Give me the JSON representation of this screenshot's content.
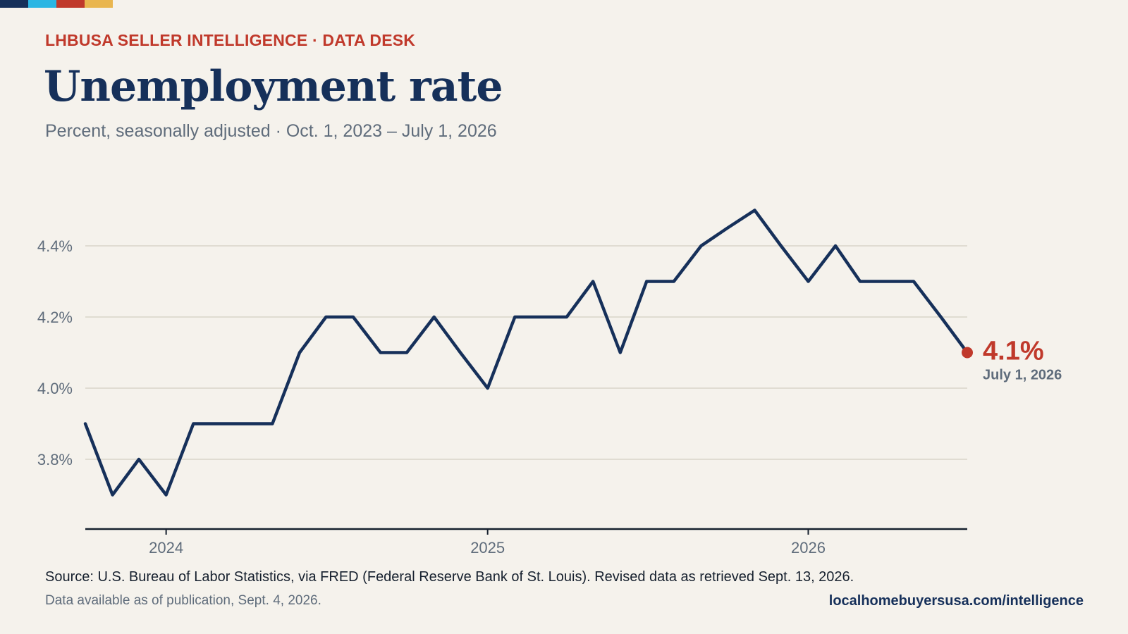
{
  "brand": {
    "stripe_colors": [
      "#16305a",
      "#2bb6e3",
      "#c0392b",
      "#e9b64f"
    ],
    "accent": "#c0392b",
    "line_color": "#16305a"
  },
  "header": {
    "kicker": "LHBUSA SELLER INTELLIGENCE · DATA DESK",
    "title": "Unemployment rate",
    "subtitle": "Percent, seasonally adjusted · Oct. 1, 2023 – July 1, 2026"
  },
  "chart_data": {
    "type": "line",
    "x": [
      "2023-10-01",
      "2023-11-01",
      "2023-12-01",
      "2024-01-01",
      "2024-02-01",
      "2024-03-01",
      "2024-04-01",
      "2024-05-01",
      "2024-06-01",
      "2024-07-01",
      "2024-08-01",
      "2024-09-01",
      "2024-10-01",
      "2024-11-01",
      "2024-12-01",
      "2025-01-01",
      "2025-02-01",
      "2025-03-01",
      "2025-04-01",
      "2025-05-01",
      "2025-06-01",
      "2025-07-01",
      "2025-08-01",
      "2025-09-01",
      "2025-10-01",
      "2025-11-01",
      "2025-12-01",
      "2026-01-01",
      "2026-02-01",
      "2026-03-01",
      "2026-04-01",
      "2026-05-01",
      "2026-06-01",
      "2026-07-01"
    ],
    "values": [
      3.9,
      3.7,
      3.8,
      3.7,
      3.9,
      3.9,
      3.9,
      3.9,
      4.1,
      4.2,
      4.2,
      4.1,
      4.1,
      4.2,
      4.1,
      4.0,
      4.2,
      4.2,
      4.2,
      4.3,
      4.1,
      4.3,
      4.3,
      4.4,
      4.45,
      4.5,
      4.4,
      4.3,
      4.4,
      4.3,
      4.3,
      4.3,
      4.2,
      4.1
    ],
    "ylim": [
      3.6,
      4.6
    ],
    "y_ticks": [
      3.8,
      4.0,
      4.2,
      4.4
    ],
    "y_tick_labels": [
      "3.8%",
      "4.0%",
      "4.2%",
      "4.4%"
    ],
    "x_ticks": [
      "2024-01-01",
      "2025-01-01",
      "2026-01-01"
    ],
    "x_tick_labels": [
      "2024",
      "2025",
      "2026"
    ],
    "grid": true,
    "end_label": {
      "value": "4.1%",
      "date": "July 1, 2026"
    }
  },
  "footer": {
    "source": "Source: U.S. Bureau of Labor Statistics, via FRED (Federal Reserve Bank of St. Louis). Revised data as retrieved Sept. 13, 2026.",
    "note": "Data available as of publication, Sept. 4, 2026.",
    "site": "localhomebuyersusa.com/intelligence"
  }
}
